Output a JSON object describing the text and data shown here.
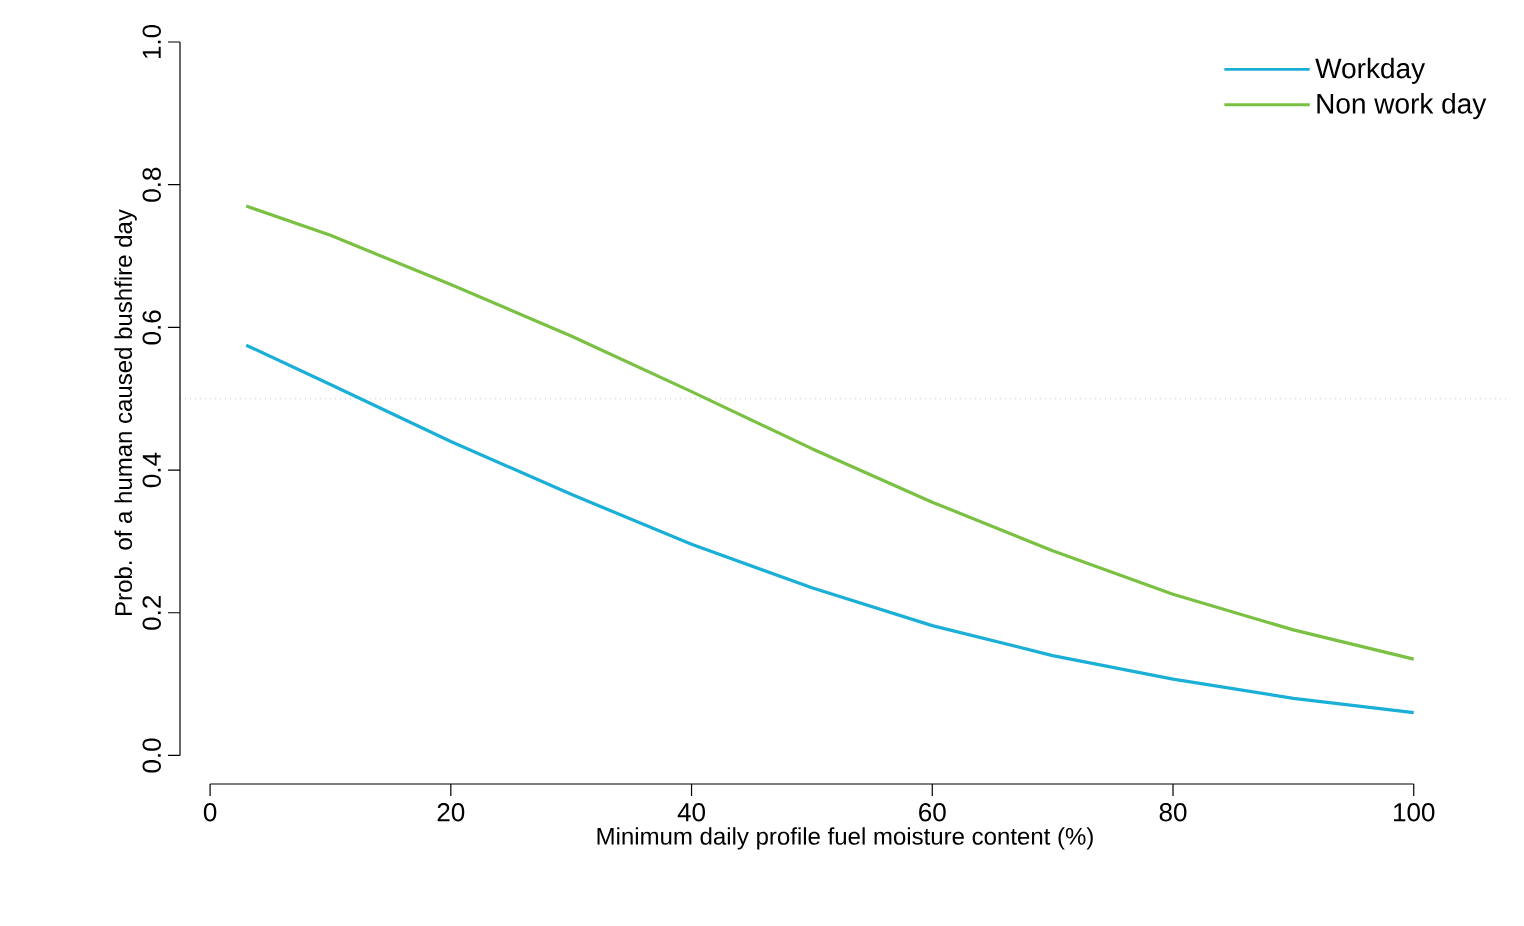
{
  "chart_data": {
    "type": "line",
    "xlabel": "Minimum daily profile fuel moisture content (%)",
    "ylabel": "Prob. of a human caused bushfire day",
    "x": [
      3,
      10,
      20,
      30,
      40,
      50,
      60,
      70,
      80,
      90,
      100
    ],
    "series": [
      {
        "name": "Workday",
        "color": "#1aafd6",
        "values": [
          0.575,
          0.52,
          0.44,
          0.366,
          0.296,
          0.235,
          0.182,
          0.14,
          0.107,
          0.08,
          0.06
        ]
      },
      {
        "name": "Non work day",
        "color": "#7ac143",
        "values": [
          0.77,
          0.729,
          0.66,
          0.588,
          0.51,
          0.43,
          0.355,
          0.287,
          0.226,
          0.176,
          0.135
        ]
      }
    ],
    "xlim": [
      -2.5,
      108
    ],
    "ylim": [
      -0.04,
      1
    ],
    "xticks": [
      0,
      20,
      40,
      60,
      80,
      100
    ],
    "yticks": [
      {
        "value": 0,
        "label": "0.0"
      },
      {
        "value": 0.2,
        "label": "0.2"
      },
      {
        "value": 0.4,
        "label": "0.4"
      },
      {
        "value": 0.6,
        "label": "0.6"
      },
      {
        "value": 0.8,
        "label": "0.8"
      },
      {
        "value": 1,
        "label": "1.0"
      }
    ],
    "ref_lines": [
      {
        "axis": "y",
        "value": 0.5,
        "color": "#c8c8c8",
        "line_style": "dotted"
      }
    ],
    "legend": "top right",
    "grid": false,
    "marker": "none",
    "line_style": "solid"
  }
}
